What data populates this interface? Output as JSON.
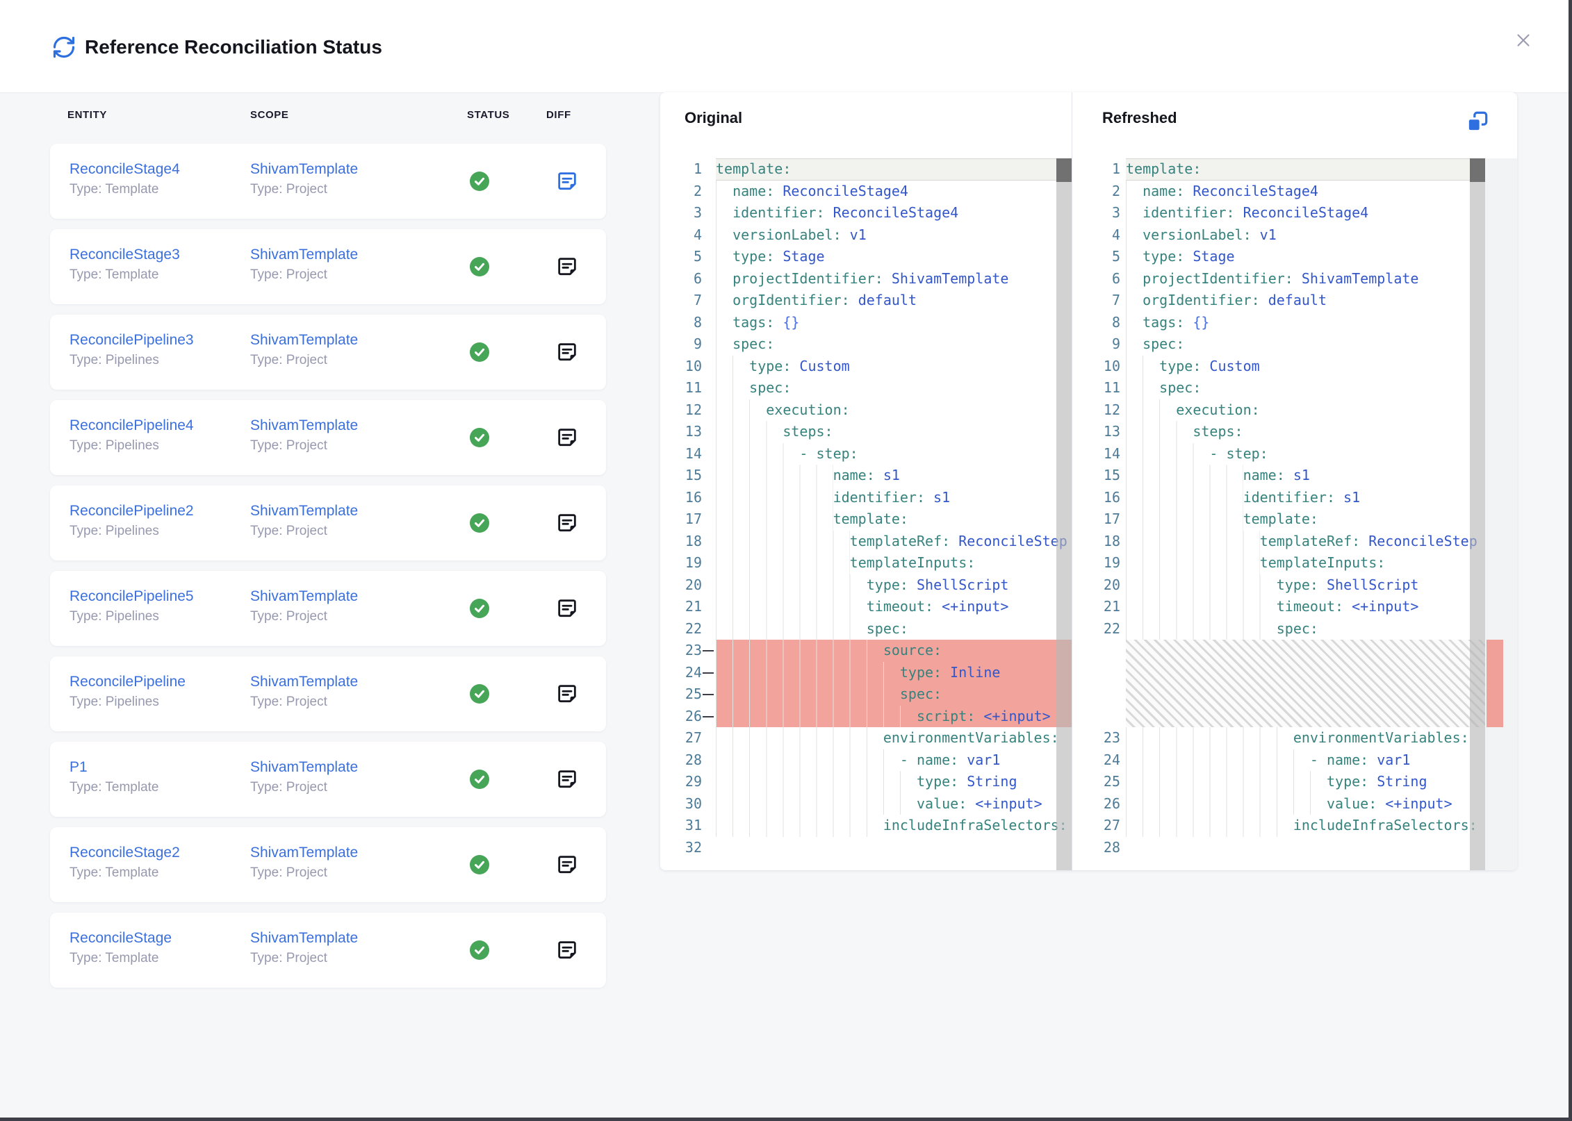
{
  "header": {
    "title": "Reference Reconciliation Status"
  },
  "icons": {
    "header_icon": "refresh-icon",
    "close": "close-icon",
    "status_ok": "check-circle-icon",
    "diff": "diff-note-icon",
    "copy": "copy-icon"
  },
  "colors": {
    "accent_blue": "#2e6fe0",
    "link_blue": "#3b70dc",
    "success_green": "#46a557",
    "deleted_bg": "#f2a49c",
    "yaml_key": "#36827d",
    "yaml_value": "#3356c9",
    "line_number": "#4d7b97",
    "body_bg": "#f6f7f9"
  },
  "table": {
    "columns": [
      "ENTITY",
      "SCOPE",
      "STATUS",
      "DIFF"
    ],
    "rows": [
      {
        "entity": "ReconcileStage4",
        "entity_type": "Type: Template",
        "scope": "ShivamTemplate",
        "scope_type": "Type: Project",
        "status": "success",
        "diff_active": true
      },
      {
        "entity": "ReconcileStage3",
        "entity_type": "Type: Template",
        "scope": "ShivamTemplate",
        "scope_type": "Type: Project",
        "status": "success",
        "diff_active": false
      },
      {
        "entity": "ReconcilePipeline3",
        "entity_type": "Type: Pipelines",
        "scope": "ShivamTemplate",
        "scope_type": "Type: Project",
        "status": "success",
        "diff_active": false
      },
      {
        "entity": "ReconcilePipeline4",
        "entity_type": "Type: Pipelines",
        "scope": "ShivamTemplate",
        "scope_type": "Type: Project",
        "status": "success",
        "diff_active": false
      },
      {
        "entity": "ReconcilePipeline2",
        "entity_type": "Type: Pipelines",
        "scope": "ShivamTemplate",
        "scope_type": "Type: Project",
        "status": "success",
        "diff_active": false
      },
      {
        "entity": "ReconcilePipeline5",
        "entity_type": "Type: Pipelines",
        "scope": "ShivamTemplate",
        "scope_type": "Type: Project",
        "status": "success",
        "diff_active": false
      },
      {
        "entity": "ReconcilePipeline",
        "entity_type": "Type: Pipelines",
        "scope": "ShivamTemplate",
        "scope_type": "Type: Project",
        "status": "success",
        "diff_active": false
      },
      {
        "entity": "P1",
        "entity_type": "Type: Template",
        "scope": "ShivamTemplate",
        "scope_type": "Type: Project",
        "status": "success",
        "diff_active": false
      },
      {
        "entity": "ReconcileStage2",
        "entity_type": "Type: Template",
        "scope": "ShivamTemplate",
        "scope_type": "Type: Project",
        "status": "success",
        "diff_active": false
      },
      {
        "entity": "ReconcileStage",
        "entity_type": "Type: Template",
        "scope": "ShivamTemplate",
        "scope_type": "Type: Project",
        "status": "success",
        "diff_active": false
      }
    ]
  },
  "panels": {
    "original": {
      "title": "Original",
      "lines": [
        [
          1,
          0,
          0,
          [
            [
              "k",
              "template:"
            ]
          ]
        ],
        [
          2,
          2,
          0,
          [
            [
              "k",
              "name:"
            ],
            [
              "v",
              " ReconcileStage4"
            ]
          ]
        ],
        [
          3,
          2,
          0,
          [
            [
              "k",
              "identifier:"
            ],
            [
              "v",
              " ReconcileStage4"
            ]
          ]
        ],
        [
          4,
          2,
          0,
          [
            [
              "k",
              "versionLabel:"
            ],
            [
              "v",
              " v1"
            ]
          ]
        ],
        [
          5,
          2,
          0,
          [
            [
              "k",
              "type:"
            ],
            [
              "v",
              " Stage"
            ]
          ]
        ],
        [
          6,
          2,
          0,
          [
            [
              "k",
              "projectIdentifier:"
            ],
            [
              "v",
              " ShivamTemplate"
            ]
          ]
        ],
        [
          7,
          2,
          0,
          [
            [
              "k",
              "orgIdentifier:"
            ],
            [
              "v",
              " default"
            ]
          ]
        ],
        [
          8,
          2,
          0,
          [
            [
              "k",
              "tags:"
            ],
            [
              "b",
              " {}"
            ]
          ]
        ],
        [
          9,
          2,
          0,
          [
            [
              "k",
              "spec:"
            ]
          ]
        ],
        [
          10,
          4,
          0,
          [
            [
              "k",
              "type:"
            ],
            [
              "v",
              " Custom"
            ]
          ]
        ],
        [
          11,
          4,
          0,
          [
            [
              "k",
              "spec:"
            ]
          ]
        ],
        [
          12,
          6,
          0,
          [
            [
              "k",
              "execution:"
            ]
          ]
        ],
        [
          13,
          8,
          0,
          [
            [
              "k",
              "steps:"
            ]
          ]
        ],
        [
          14,
          10,
          0,
          [
            [
              "k",
              "- step:"
            ]
          ]
        ],
        [
          15,
          14,
          0,
          [
            [
              "k",
              "name:"
            ],
            [
              "v",
              " s1"
            ]
          ]
        ],
        [
          16,
          14,
          0,
          [
            [
              "k",
              "identifier:"
            ],
            [
              "v",
              " s1"
            ]
          ]
        ],
        [
          17,
          14,
          0,
          [
            [
              "k",
              "template:"
            ]
          ]
        ],
        [
          18,
          16,
          0,
          [
            [
              "k",
              "templateRef:"
            ],
            [
              "v",
              " ReconcileStep"
            ]
          ]
        ],
        [
          19,
          16,
          0,
          [
            [
              "k",
              "templateInputs:"
            ]
          ]
        ],
        [
          20,
          18,
          0,
          [
            [
              "k",
              "type:"
            ],
            [
              "v",
              " ShellScript"
            ]
          ]
        ],
        [
          21,
          18,
          0,
          [
            [
              "k",
              "timeout:"
            ],
            [
              "v",
              " <+input>"
            ]
          ]
        ],
        [
          22,
          18,
          0,
          [
            [
              "k",
              "spec:"
            ]
          ]
        ],
        [
          23,
          20,
          1,
          [
            [
              "k",
              "source:"
            ]
          ]
        ],
        [
          24,
          22,
          1,
          [
            [
              "k",
              "type:"
            ],
            [
              "v",
              " Inline"
            ]
          ]
        ],
        [
          25,
          22,
          1,
          [
            [
              "k",
              "spec:"
            ]
          ]
        ],
        [
          26,
          24,
          1,
          [
            [
              "k",
              "script:"
            ],
            [
              "v",
              " <+input>"
            ]
          ]
        ],
        [
          27,
          20,
          0,
          [
            [
              "k",
              "environmentVariables:"
            ]
          ]
        ],
        [
          28,
          22,
          0,
          [
            [
              "k",
              "- name:"
            ],
            [
              "v",
              " var1"
            ]
          ]
        ],
        [
          29,
          24,
          0,
          [
            [
              "k",
              "type:"
            ],
            [
              "v",
              " String"
            ]
          ]
        ],
        [
          30,
          24,
          0,
          [
            [
              "k",
              "value:"
            ],
            [
              "v",
              " <+input>"
            ]
          ]
        ],
        [
          31,
          20,
          0,
          [
            [
              "k",
              "includeInfraSelectors:"
            ]
          ]
        ],
        [
          32,
          0,
          0,
          []
        ]
      ]
    },
    "refreshed": {
      "title": "Refreshed",
      "hatch_after_line": 22,
      "hatch_line_count": 4,
      "lines": [
        [
          1,
          0,
          0,
          [
            [
              "k",
              "template:"
            ]
          ]
        ],
        [
          2,
          2,
          0,
          [
            [
              "k",
              "name:"
            ],
            [
              "v",
              " ReconcileStage4"
            ]
          ]
        ],
        [
          3,
          2,
          0,
          [
            [
              "k",
              "identifier:"
            ],
            [
              "v",
              " ReconcileStage4"
            ]
          ]
        ],
        [
          4,
          2,
          0,
          [
            [
              "k",
              "versionLabel:"
            ],
            [
              "v",
              " v1"
            ]
          ]
        ],
        [
          5,
          2,
          0,
          [
            [
              "k",
              "type:"
            ],
            [
              "v",
              " Stage"
            ]
          ]
        ],
        [
          6,
          2,
          0,
          [
            [
              "k",
              "projectIdentifier:"
            ],
            [
              "v",
              " ShivamTemplate"
            ]
          ]
        ],
        [
          7,
          2,
          0,
          [
            [
              "k",
              "orgIdentifier:"
            ],
            [
              "v",
              " default"
            ]
          ]
        ],
        [
          8,
          2,
          0,
          [
            [
              "k",
              "tags:"
            ],
            [
              "b",
              " {}"
            ]
          ]
        ],
        [
          9,
          2,
          0,
          [
            [
              "k",
              "spec:"
            ]
          ]
        ],
        [
          10,
          4,
          0,
          [
            [
              "k",
              "type:"
            ],
            [
              "v",
              " Custom"
            ]
          ]
        ],
        [
          11,
          4,
          0,
          [
            [
              "k",
              "spec:"
            ]
          ]
        ],
        [
          12,
          6,
          0,
          [
            [
              "k",
              "execution:"
            ]
          ]
        ],
        [
          13,
          8,
          0,
          [
            [
              "k",
              "steps:"
            ]
          ]
        ],
        [
          14,
          10,
          0,
          [
            [
              "k",
              "- step:"
            ]
          ]
        ],
        [
          15,
          14,
          0,
          [
            [
              "k",
              "name:"
            ],
            [
              "v",
              " s1"
            ]
          ]
        ],
        [
          16,
          14,
          0,
          [
            [
              "k",
              "identifier:"
            ],
            [
              "v",
              " s1"
            ]
          ]
        ],
        [
          17,
          14,
          0,
          [
            [
              "k",
              "template:"
            ]
          ]
        ],
        [
          18,
          16,
          0,
          [
            [
              "k",
              "templateRef:"
            ],
            [
              "v",
              " ReconcileStep"
            ]
          ]
        ],
        [
          19,
          16,
          0,
          [
            [
              "k",
              "templateInputs:"
            ]
          ]
        ],
        [
          20,
          18,
          0,
          [
            [
              "k",
              "type:"
            ],
            [
              "v",
              " ShellScript"
            ]
          ]
        ],
        [
          21,
          18,
          0,
          [
            [
              "k",
              "timeout:"
            ],
            [
              "v",
              " <+input>"
            ]
          ]
        ],
        [
          22,
          18,
          0,
          [
            [
              "k",
              "spec:"
            ]
          ]
        ],
        [
          23,
          20,
          0,
          [
            [
              "k",
              "environmentVariables:"
            ]
          ]
        ],
        [
          24,
          22,
          0,
          [
            [
              "k",
              "- name:"
            ],
            [
              "v",
              " var1"
            ]
          ]
        ],
        [
          25,
          24,
          0,
          [
            [
              "k",
              "type:"
            ],
            [
              "v",
              " String"
            ]
          ]
        ],
        [
          26,
          24,
          0,
          [
            [
              "k",
              "value:"
            ],
            [
              "v",
              " <+input>"
            ]
          ]
        ],
        [
          27,
          20,
          0,
          [
            [
              "k",
              "includeInfraSelectors:"
            ]
          ]
        ],
        [
          28,
          0,
          0,
          []
        ]
      ]
    }
  }
}
